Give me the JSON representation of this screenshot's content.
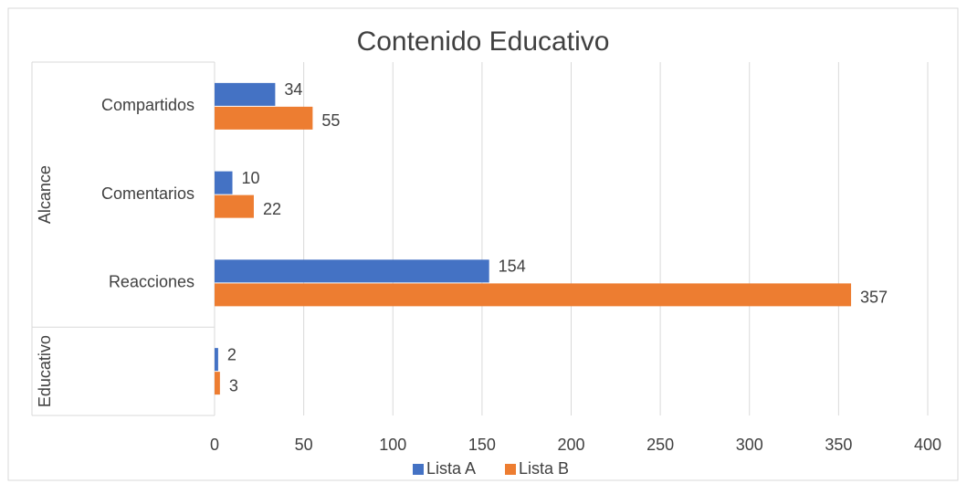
{
  "chart_data": {
    "type": "bar",
    "orientation": "horizontal",
    "title": "Contenido Educativo",
    "categories": [
      "Compartidos",
      "Comentarios",
      "Reacciones",
      null
    ],
    "category_groups": [
      "Alcance",
      "Alcance",
      "Alcance",
      "Educativo"
    ],
    "series": [
      {
        "name": "Lista A",
        "color": "#4472c4",
        "values": [
          34,
          10,
          154,
          2
        ]
      },
      {
        "name": "Lista B",
        "color": "#ed7d31",
        "values": [
          55,
          22,
          357,
          3
        ]
      }
    ],
    "xlim": [
      0,
      400
    ],
    "xticks": [
      0,
      50,
      100,
      150,
      200,
      250,
      300,
      350,
      400
    ],
    "grid": true,
    "legend": "bottom"
  }
}
